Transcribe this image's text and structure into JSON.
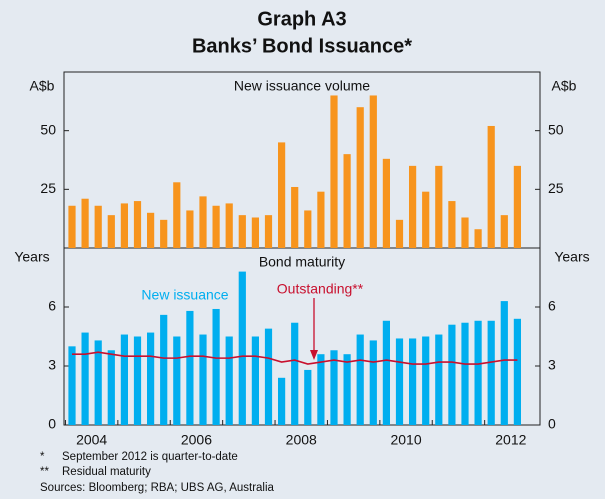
{
  "title": "Graph A3",
  "subtitle": "Banks’ Bond Issuance*",
  "notes": [
    [
      "*",
      "September 2012 is quarter-to-date"
    ],
    [
      "**",
      "Residual maturity"
    ]
  ],
  "sources": "Sources: Bloomberg; RBA; UBS AG, Australia",
  "chart_data": [
    {
      "type": "bar",
      "title": "New issuance volume",
      "y_label": "A$b",
      "color": "#f7941d",
      "values": [
        18,
        21,
        18,
        14,
        19,
        20,
        15,
        12,
        28,
        16,
        22,
        18,
        19,
        14,
        13,
        14,
        45,
        26,
        16,
        24,
        65,
        40,
        60,
        65,
        38,
        12,
        35,
        24,
        35,
        20,
        13,
        8,
        52,
        14,
        35
      ],
      "ylim": [
        0,
        75
      ],
      "yticks": [
        25,
        50
      ]
    },
    {
      "type": "combo",
      "title": "Bond maturity",
      "y_label": "Years",
      "categories": [
        null,
        "2004",
        null,
        null,
        null,
        null,
        null,
        null,
        null,
        "2006",
        null,
        null,
        null,
        null,
        null,
        null,
        null,
        "2008",
        null,
        null,
        null,
        null,
        null,
        null,
        null,
        "2010",
        null,
        null,
        null,
        null,
        null,
        null,
        null,
        "2012",
        null
      ],
      "series": [
        {
          "name": "New issuance",
          "kind": "bar",
          "color": "#00aeef",
          "values": [
            4.0,
            4.7,
            4.3,
            3.8,
            4.6,
            4.5,
            4.7,
            5.6,
            4.5,
            5.8,
            4.6,
            5.9,
            4.5,
            7.8,
            4.5,
            4.9,
            2.4,
            5.2,
            2.8,
            3.6,
            3.8,
            3.6,
            4.6,
            4.3,
            5.3,
            4.4,
            4.4,
            4.5,
            4.6,
            5.1,
            5.2,
            5.3,
            5.3,
            6.3,
            5.4
          ]
        },
        {
          "name": "Outstanding**",
          "kind": "line",
          "color": "#c8102e",
          "values": [
            3.6,
            3.6,
            3.7,
            3.6,
            3.5,
            3.5,
            3.5,
            3.4,
            3.4,
            3.5,
            3.5,
            3.4,
            3.4,
            3.5,
            3.5,
            3.4,
            3.2,
            3.3,
            3.1,
            3.2,
            3.3,
            3.2,
            3.3,
            3.2,
            3.3,
            3.2,
            3.1,
            3.1,
            3.2,
            3.2,
            3.1,
            3.1,
            3.2,
            3.3,
            3.3
          ]
        }
      ],
      "ylim": [
        0,
        9
      ],
      "yticks": [
        0,
        3,
        6
      ]
    }
  ]
}
